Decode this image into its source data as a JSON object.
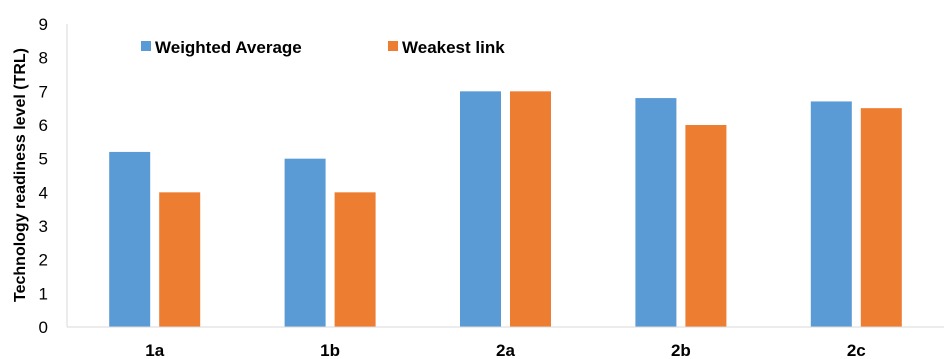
{
  "chart_data": {
    "type": "bar",
    "title": "",
    "xlabel": "",
    "ylabel": "Technology readiness level (TRL)",
    "ylim": [
      0,
      9
    ],
    "yticks": [
      0,
      1,
      2,
      3,
      4,
      5,
      6,
      7,
      8,
      9
    ],
    "grid": false,
    "legend_position": "top-left",
    "categories": [
      "1a",
      "1b",
      "2a",
      "2b",
      "2c"
    ],
    "series": [
      {
        "name": "Weighted Average",
        "color": "#5B9BD5",
        "values": [
          5.2,
          5.0,
          7.0,
          6.8,
          6.7
        ]
      },
      {
        "name": "Weakest link",
        "color": "#ED7D31",
        "values": [
          4.0,
          4.0,
          7.0,
          6.0,
          6.5
        ]
      }
    ]
  }
}
